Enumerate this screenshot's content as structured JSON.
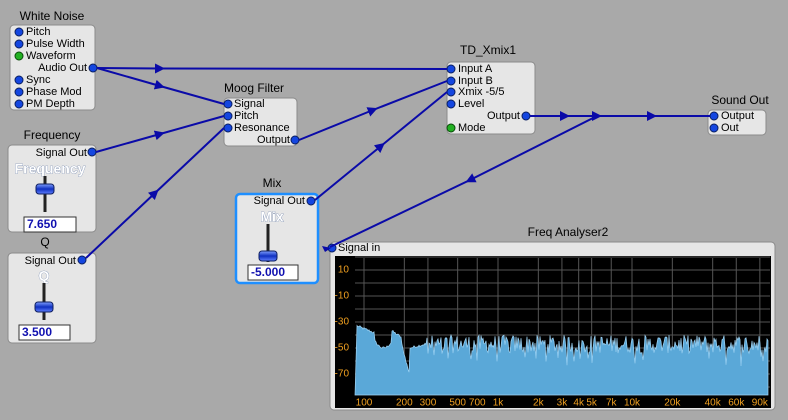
{
  "modules": [
    {
      "title": "White Noise",
      "pins": [
        "Pitch",
        "Pulse Width",
        "Waveform",
        "Audio Out",
        "Sync",
        "Phase Mod",
        "PM Depth"
      ]
    },
    {
      "title": "Frequency",
      "pins": [
        "Signal Out"
      ],
      "control_label": "Frequency",
      "value": "7.650"
    },
    {
      "title": "Q",
      "pins": [
        "Signal Out"
      ],
      "control_label": "Q",
      "value": "3.500"
    },
    {
      "title": "Moog Filter",
      "pins": [
        "Signal",
        "Pitch",
        "Resonance",
        "Output"
      ]
    },
    {
      "title": "Mix",
      "pins": [
        "Signal Out"
      ],
      "control_label": "Mix",
      "value": "-5.000"
    },
    {
      "title": "TD_Xmix1",
      "pins": [
        "Input A",
        "Input B",
        "Xmix -5/5",
        "Level",
        "Output",
        "Mode"
      ]
    },
    {
      "title": "Sound Out",
      "pins": [
        "Output",
        "Out"
      ]
    },
    {
      "title": "Freq Analyser2",
      "pins": [
        "Signal in"
      ],
      "y_labels": [
        "10",
        "-10",
        "-30",
        "-50",
        "-70"
      ],
      "x_labels": [
        "100",
        "200",
        "300",
        "500",
        "700",
        "1k",
        "2k",
        "3k",
        "4k",
        "5k",
        "7k",
        "10k",
        "20k",
        "40k",
        "60k",
        "90k"
      ]
    }
  ]
}
